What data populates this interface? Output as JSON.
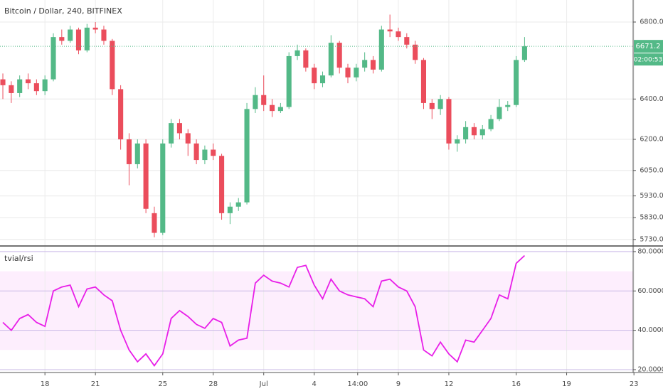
{
  "chart_data": [
    {
      "type": "candlestick",
      "title": "Bitcoin / Dollar, 240, BITFINEX",
      "countdown": "02:00:53",
      "log": true,
      "grid": true,
      "up_color": "#53b987",
      "down_color": "#eb4d5c",
      "x": [
        15.5,
        16,
        16.5,
        17,
        17.5,
        18,
        18.5,
        19,
        19.5,
        20,
        20.5,
        21,
        21.5,
        22,
        22.5,
        23,
        23.5,
        24,
        24.5,
        25,
        25.5,
        26,
        26.5,
        27,
        27.5,
        28,
        28.5,
        29,
        29.5,
        30,
        30.5,
        31,
        31.5,
        32,
        32.5,
        33,
        33.5,
        34,
        34.5,
        35,
        35.5,
        36,
        36.5,
        37,
        37.5,
        38,
        38.5,
        39,
        39.5,
        40,
        40.5,
        41,
        41.5,
        42,
        42.5,
        43,
        43.5,
        44,
        44.5,
        45,
        45.5,
        46,
        46.5
      ],
      "open": [
        6500,
        6470,
        6430,
        6500,
        6480,
        6440,
        6500,
        6720,
        6700,
        6760,
        6650,
        6770,
        6760,
        6700,
        6450,
        6200,
        6080,
        6180,
        5850,
        5760,
        6180,
        6280,
        6230,
        6180,
        6100,
        6150,
        6120,
        5850,
        5880,
        5900,
        6350,
        6420,
        6370,
        6340,
        6360,
        6620,
        6650,
        6560,
        6480,
        6520,
        6690,
        6560,
        6510,
        6560,
        6600,
        6550,
        6760,
        6750,
        6720,
        6680,
        6600,
        6380,
        6350,
        6400,
        6180,
        6200,
        6260,
        6220,
        6250,
        6300,
        6360,
        6370,
        6600
      ],
      "high": [
        6530,
        6490,
        6520,
        6530,
        6500,
        6520,
        6740,
        6760,
        6780,
        6770,
        6790,
        6800,
        6780,
        6710,
        6470,
        6230,
        6200,
        6200,
        5880,
        6200,
        6300,
        6300,
        6250,
        6200,
        6170,
        6180,
        6130,
        5900,
        5920,
        6380,
        6460,
        6520,
        6400,
        6380,
        6640,
        6680,
        6660,
        6580,
        6540,
        6730,
        6700,
        6580,
        6580,
        6640,
        6620,
        6780,
        6840,
        6770,
        6740,
        6700,
        6610,
        6400,
        6420,
        6410,
        6220,
        6290,
        6280,
        6270,
        6320,
        6400,
        6390,
        6620,
        6720
      ],
      "low": [
        6400,
        6380,
        6410,
        6450,
        6420,
        6420,
        6490,
        6680,
        6690,
        6630,
        6640,
        6740,
        6680,
        6420,
        6150,
        5980,
        6060,
        5850,
        5740,
        5750,
        6160,
        6200,
        6120,
        6080,
        6080,
        6100,
        5820,
        5800,
        5860,
        5890,
        6330,
        6340,
        6310,
        6330,
        6350,
        6600,
        6540,
        6450,
        6460,
        6510,
        6530,
        6480,
        6490,
        6540,
        6530,
        6540,
        6720,
        6700,
        6660,
        6580,
        6350,
        6300,
        6320,
        6150,
        6140,
        6180,
        6200,
        6200,
        6240,
        6290,
        6340,
        6360,
        6590
      ],
      "close": [
        6470,
        6430,
        6500,
        6480,
        6440,
        6500,
        6720,
        6700,
        6760,
        6650,
        6770,
        6760,
        6700,
        6450,
        6200,
        6080,
        6180,
        5870,
        5760,
        6180,
        6280,
        6230,
        6180,
        6100,
        6150,
        6120,
        5850,
        5880,
        5900,
        6350,
        6420,
        6370,
        6340,
        6360,
        6620,
        6650,
        6560,
        6480,
        6520,
        6690,
        6560,
        6510,
        6560,
        6600,
        6550,
        6760,
        6750,
        6720,
        6680,
        6600,
        6380,
        6350,
        6400,
        6180,
        6200,
        6260,
        6220,
        6250,
        6300,
        6360,
        6370,
        6600,
        6671.2
      ],
      "xlim": [
        15.33,
        52.95
      ],
      "xticks": [
        {
          "value": 18,
          "label": "18"
        },
        {
          "value": 21,
          "label": "21"
        },
        {
          "value": 25,
          "label": "25"
        },
        {
          "value": 28,
          "label": "28"
        },
        {
          "value": 31,
          "label": "Jul"
        },
        {
          "value": 34,
          "label": "4"
        },
        {
          "value": 36.583,
          "label": "14:00"
        },
        {
          "value": 39,
          "label": "9"
        },
        {
          "value": 42,
          "label": "12"
        },
        {
          "value": 46,
          "label": "16"
        },
        {
          "value": 49,
          "label": "19"
        },
        {
          "value": 53,
          "label": "23"
        }
      ],
      "ylim": [
        5704,
        6919
      ],
      "yticks": [
        {
          "value": 5730,
          "label": "5730.0"
        },
        {
          "value": 5830,
          "label": "5830.0"
        },
        {
          "value": 5930,
          "label": "5930.0"
        },
        {
          "value": 6050,
          "label": "6050.0"
        },
        {
          "value": 6200,
          "label": "6200.0"
        },
        {
          "value": 6400,
          "label": "6400.0"
        },
        {
          "value": 6800,
          "label": "6800.0"
        }
      ]
    },
    {
      "type": "line",
      "title": "tvial/rsi",
      "color": "#e81ee8",
      "band": [
        30,
        70
      ],
      "band_color": "#fdeefd",
      "grid": true,
      "x": [
        15.5,
        16,
        16.5,
        17,
        17.5,
        18,
        18.5,
        19,
        19.5,
        20,
        20.5,
        21,
        21.5,
        22,
        22.5,
        23,
        23.5,
        24,
        24.5,
        25,
        25.5,
        26,
        26.5,
        27,
        27.5,
        28,
        28.5,
        29,
        29.5,
        30,
        30.5,
        31,
        31.5,
        32,
        32.5,
        33,
        33.5,
        34,
        34.5,
        35,
        35.5,
        36,
        36.5,
        37,
        37.5,
        38,
        38.5,
        39,
        39.5,
        40,
        40.5,
        41,
        41.5,
        42,
        42.5,
        43,
        43.5,
        44,
        44.5,
        45,
        45.5,
        46,
        46.5
      ],
      "values": [
        44,
        40,
        46,
        48,
        44,
        42,
        60,
        62,
        63,
        52,
        61,
        62,
        58,
        55,
        40,
        30,
        24,
        28,
        22,
        28,
        46,
        50,
        47,
        43,
        41,
        46,
        44,
        32,
        35,
        36,
        64,
        68,
        65,
        64,
        62,
        72,
        73,
        63,
        56,
        66,
        60,
        58,
        57,
        56,
        52,
        65,
        66,
        62,
        60,
        52,
        30,
        27,
        34,
        28,
        24,
        35,
        34,
        40,
        46,
        58,
        56,
        74,
        78
      ],
      "xlim": [
        15.33,
        52.95
      ],
      "ylim": [
        18.9,
        82.5
      ],
      "yticks": [
        {
          "value": 20,
          "label": "20.0000"
        },
        {
          "value": 40,
          "label": "40.0000"
        },
        {
          "value": 60,
          "label": "60.0000"
        },
        {
          "value": 80,
          "label": "80.0000"
        }
      ]
    }
  ]
}
